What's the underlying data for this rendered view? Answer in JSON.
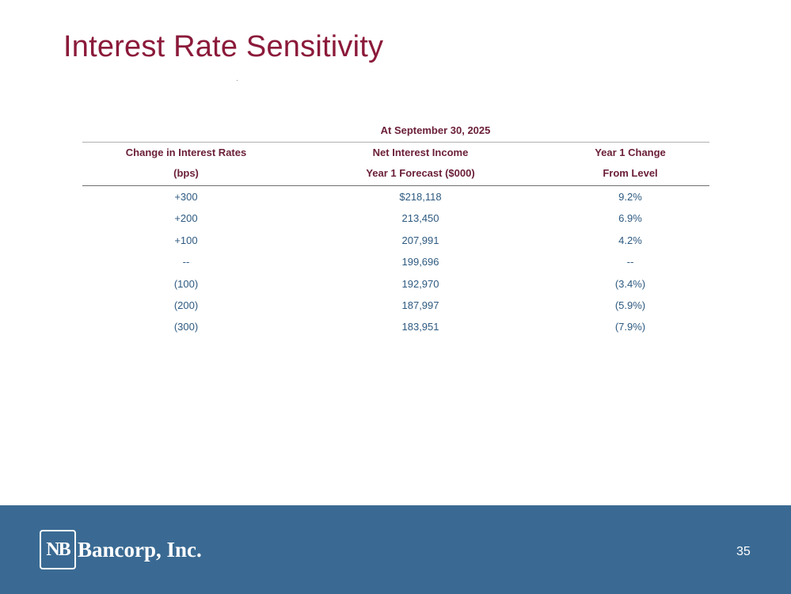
{
  "slide": {
    "title": "Interest Rate Sensitivity",
    "page_number": "35"
  },
  "table": {
    "period_header": "At September 30, 2025",
    "headers": {
      "col1_line1": "Change in Interest Rates",
      "col1_line2": "(bps)",
      "col2_line1": "Net Interest Income",
      "col2_line2": "Year 1 Forecast ($000)",
      "col3_line1": "Year 1 Change",
      "col3_line2": "From Level"
    },
    "rows": [
      {
        "rate_change": "+300",
        "nii_forecast": "$218,118",
        "change_from_level": "9.2%"
      },
      {
        "rate_change": "+200",
        "nii_forecast": "213,450",
        "change_from_level": "6.9%"
      },
      {
        "rate_change": "+100",
        "nii_forecast": "207,991",
        "change_from_level": "4.2%"
      },
      {
        "rate_change": "--",
        "nii_forecast": "199,696",
        "change_from_level": "--"
      },
      {
        "rate_change": "(100)",
        "nii_forecast": "192,970",
        "change_from_level": "(3.4%)"
      },
      {
        "rate_change": "(200)",
        "nii_forecast": "187,997",
        "change_from_level": "(5.9%)"
      },
      {
        "rate_change": "(300)",
        "nii_forecast": "183,951",
        "change_from_level": "(7.9%)"
      }
    ]
  },
  "footer": {
    "logo_mark": "NB",
    "logo_text": "Bancorp, Inc."
  },
  "colors": {
    "title": "#8b1a3a",
    "header_text": "#6b2038",
    "body_text": "#2e5a80",
    "footer_bg": "#3a6a93"
  }
}
